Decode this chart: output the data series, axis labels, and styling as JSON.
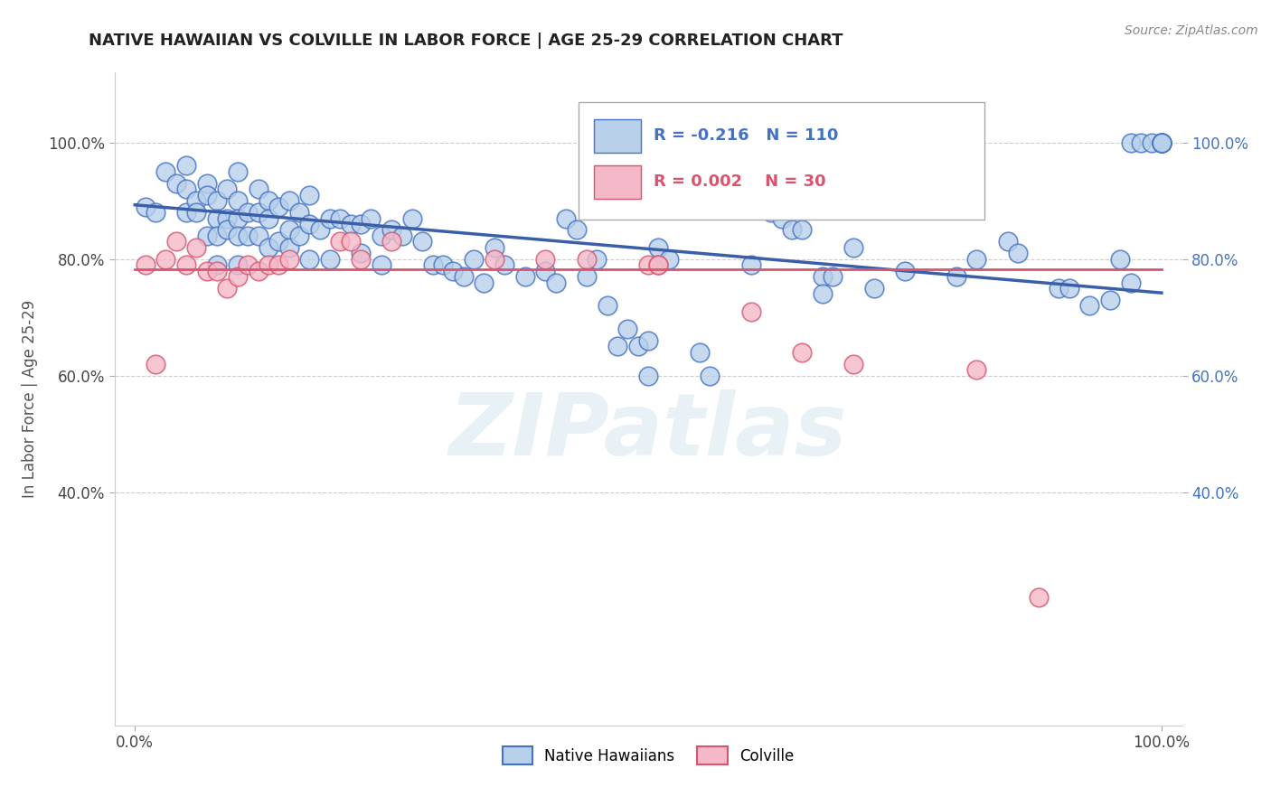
{
  "title": "NATIVE HAWAIIAN VS COLVILLE IN LABOR FORCE | AGE 25-29 CORRELATION CHART",
  "source": "Source: ZipAtlas.com",
  "ylabel": "In Labor Force | Age 25-29",
  "xlim": [
    -0.02,
    1.02
  ],
  "ylim": [
    0.0,
    1.12
  ],
  "yticks": [
    0.4,
    0.6,
    0.8,
    1.0
  ],
  "ytick_labels": [
    "40.0%",
    "60.0%",
    "80.0%",
    "100.0%"
  ],
  "xticks": [
    0.0,
    1.0
  ],
  "xtick_labels": [
    "0.0%",
    "100.0%"
  ],
  "legend_r_blue": "-0.216",
  "legend_n_blue": "110",
  "legend_r_pink": "0.002",
  "legend_n_pink": "30",
  "blue_face": "#b8d0ea",
  "blue_edge": "#4472c4",
  "pink_face": "#f5b8c8",
  "pink_edge": "#d9546e",
  "blue_line": "#3a5fa8",
  "pink_line": "#d9546e",
  "grid_color": "#cccccc",
  "title_color": "#222222",
  "left_tick_color": "#444444",
  "right_tick_color": "#4472c4",
  "watermark_color": "#d8e8f0",
  "watermark": "ZIPatlas",
  "blue_scatter_x": [
    0.01,
    0.02,
    0.03,
    0.04,
    0.05,
    0.05,
    0.05,
    0.06,
    0.06,
    0.07,
    0.07,
    0.07,
    0.08,
    0.08,
    0.08,
    0.08,
    0.09,
    0.09,
    0.09,
    0.1,
    0.1,
    0.1,
    0.1,
    0.1,
    0.11,
    0.11,
    0.12,
    0.12,
    0.12,
    0.13,
    0.13,
    0.13,
    0.14,
    0.14,
    0.15,
    0.15,
    0.15,
    0.16,
    0.16,
    0.17,
    0.17,
    0.17,
    0.18,
    0.19,
    0.19,
    0.2,
    0.21,
    0.22,
    0.22,
    0.23,
    0.24,
    0.24,
    0.25,
    0.26,
    0.27,
    0.28,
    0.29,
    0.3,
    0.31,
    0.32,
    0.33,
    0.34,
    0.35,
    0.36,
    0.38,
    0.4,
    0.41,
    0.42,
    0.43,
    0.44,
    0.45,
    0.46,
    0.47,
    0.48,
    0.49,
    0.5,
    0.5,
    0.51,
    0.52,
    0.55,
    0.56,
    0.6,
    0.62,
    0.63,
    0.64,
    0.65,
    0.67,
    0.67,
    0.68,
    0.7,
    0.72,
    0.75,
    0.8,
    0.82,
    0.85,
    0.86,
    0.9,
    0.91,
    0.93,
    0.95,
    0.97,
    0.98,
    0.99,
    1.0,
    1.0,
    1.0,
    1.0,
    1.0,
    0.96,
    0.97
  ],
  "blue_scatter_y": [
    0.89,
    0.88,
    0.95,
    0.93,
    0.96,
    0.92,
    0.88,
    0.9,
    0.88,
    0.93,
    0.91,
    0.84,
    0.9,
    0.87,
    0.84,
    0.79,
    0.92,
    0.87,
    0.85,
    0.95,
    0.9,
    0.87,
    0.84,
    0.79,
    0.88,
    0.84,
    0.92,
    0.88,
    0.84,
    0.9,
    0.87,
    0.82,
    0.89,
    0.83,
    0.9,
    0.85,
    0.82,
    0.88,
    0.84,
    0.91,
    0.86,
    0.8,
    0.85,
    0.87,
    0.8,
    0.87,
    0.86,
    0.86,
    0.81,
    0.87,
    0.84,
    0.79,
    0.85,
    0.84,
    0.87,
    0.83,
    0.79,
    0.79,
    0.78,
    0.77,
    0.8,
    0.76,
    0.82,
    0.79,
    0.77,
    0.78,
    0.76,
    0.87,
    0.85,
    0.77,
    0.8,
    0.72,
    0.65,
    0.68,
    0.65,
    0.66,
    0.6,
    0.82,
    0.8,
    0.64,
    0.6,
    0.79,
    0.88,
    0.87,
    0.85,
    0.85,
    0.77,
    0.74,
    0.77,
    0.82,
    0.75,
    0.78,
    0.77,
    0.8,
    0.83,
    0.81,
    0.75,
    0.75,
    0.72,
    0.73,
    1.0,
    1.0,
    1.0,
    1.0,
    1.0,
    1.0,
    1.0,
    1.0,
    0.8,
    0.76
  ],
  "pink_scatter_x": [
    0.01,
    0.02,
    0.03,
    0.04,
    0.05,
    0.06,
    0.07,
    0.08,
    0.09,
    0.1,
    0.11,
    0.12,
    0.13,
    0.14,
    0.15,
    0.2,
    0.21,
    0.22,
    0.25,
    0.35,
    0.4,
    0.44,
    0.5,
    0.51,
    0.51,
    0.6,
    0.65,
    0.7,
    0.82,
    0.88
  ],
  "pink_scatter_y": [
    0.79,
    0.62,
    0.8,
    0.83,
    0.79,
    0.82,
    0.78,
    0.78,
    0.75,
    0.77,
    0.79,
    0.78,
    0.79,
    0.79,
    0.8,
    0.83,
    0.83,
    0.8,
    0.83,
    0.8,
    0.8,
    0.8,
    0.79,
    0.79,
    0.79,
    0.71,
    0.64,
    0.62,
    0.61,
    0.22
  ],
  "blue_trend_x0": 0.0,
  "blue_trend_x1": 1.0,
  "blue_trend_y0": 0.893,
  "blue_trend_y1": 0.742,
  "pink_trend_y": 0.782,
  "figsize": [
    14.06,
    8.92
  ],
  "dpi": 100
}
